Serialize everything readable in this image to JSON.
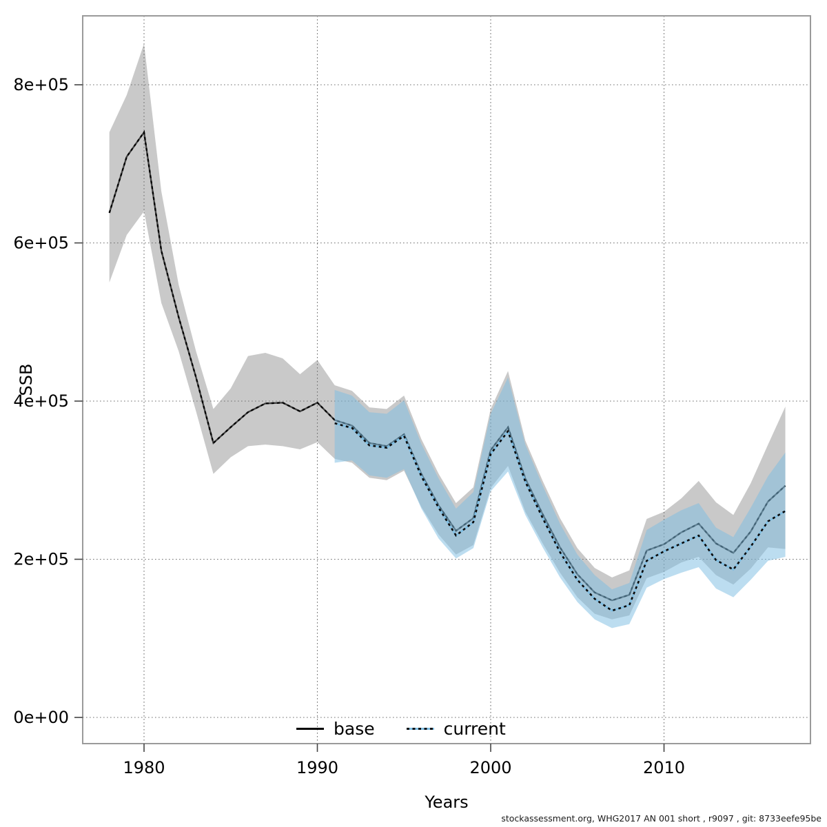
{
  "figure": {
    "footer": "stockassessment.org, WHG2017 AN 001 short , r9097 , git: 8733eefe95be"
  },
  "chart_data": {
    "type": "line",
    "title": "",
    "xlabel": "Years",
    "ylabel": "SSB",
    "grid": "dotted",
    "xlim": [
      1976.5,
      2018.5
    ],
    "ylim": [
      -33000,
      887000
    ],
    "x_ticks": [
      1980,
      1990,
      2000,
      2010
    ],
    "y_ticks": [
      {
        "value": 0,
        "label": "0e+00"
      },
      {
        "value": 200000,
        "label": "2e+05"
      },
      {
        "value": 400000,
        "label": "4e+05"
      },
      {
        "value": 600000,
        "label": "6e+05"
      },
      {
        "value": 800000,
        "label": "8e+05"
      }
    ],
    "legend": {
      "position": "bottom-center",
      "entries": [
        {
          "label": "base",
          "line_style": "solid",
          "line_color": "#000000"
        },
        {
          "label": "current",
          "line_style": "dotted",
          "line_color": "#101418",
          "line_underlay_color": "#7fbee3"
        }
      ]
    },
    "colors": {
      "base_band": "#c9c9c9",
      "current_band": "#7fbee3",
      "current_band_opacity": 0.52,
      "base_line": "#000000",
      "current_line_dots": "#0a0a0a",
      "current_line_underlay": "#7fbee3",
      "plot_border": "#9a9a9a",
      "grid": "#6e6e6e",
      "tick": "#444444"
    },
    "series": [
      {
        "name": "base",
        "band": "gray confidence interval",
        "points": [
          {
            "year": 1978,
            "value": 638000,
            "lo": 550000,
            "hi": 740000
          },
          {
            "year": 1979,
            "value": 709000,
            "lo": 610000,
            "hi": 787000
          },
          {
            "year": 1980,
            "value": 740000,
            "lo": 640000,
            "hi": 852000
          },
          {
            "year": 1981,
            "value": 590000,
            "lo": 524000,
            "hi": 665000
          },
          {
            "year": 1982,
            "value": 506000,
            "lo": 463000,
            "hi": 547000
          },
          {
            "year": 1983,
            "value": 430000,
            "lo": 387000,
            "hi": 463000
          },
          {
            "year": 1984,
            "value": 347000,
            "lo": 308000,
            "hi": 390000
          },
          {
            "year": 1985,
            "value": 367000,
            "lo": 329000,
            "hi": 416000
          },
          {
            "year": 1986,
            "value": 386000,
            "lo": 343000,
            "hi": 457000
          },
          {
            "year": 1987,
            "value": 397000,
            "lo": 345000,
            "hi": 461000
          },
          {
            "year": 1988,
            "value": 398000,
            "lo": 343000,
            "hi": 454000
          },
          {
            "year": 1989,
            "value": 387000,
            "lo": 339000,
            "hi": 434000
          },
          {
            "year": 1990,
            "value": 398000,
            "lo": 348000,
            "hi": 452000
          },
          {
            "year": 1991,
            "value": 376000,
            "lo": 327000,
            "hi": 420000
          },
          {
            "year": 1992,
            "value": 369000,
            "lo": 322000,
            "hi": 413000
          },
          {
            "year": 1993,
            "value": 347000,
            "lo": 303000,
            "hi": 392000
          },
          {
            "year": 1994,
            "value": 343000,
            "lo": 300000,
            "hi": 390000
          },
          {
            "year": 1995,
            "value": 358000,
            "lo": 312000,
            "hi": 407000
          },
          {
            "year": 1996,
            "value": 308000,
            "lo": 266000,
            "hi": 352000
          },
          {
            "year": 1997,
            "value": 268000,
            "lo": 231000,
            "hi": 308000
          },
          {
            "year": 1998,
            "value": 236000,
            "lo": 206000,
            "hi": 271000
          },
          {
            "year": 1999,
            "value": 252000,
            "lo": 218000,
            "hi": 291000
          },
          {
            "year": 2000,
            "value": 338000,
            "lo": 290000,
            "hi": 390000
          },
          {
            "year": 2001,
            "value": 367000,
            "lo": 318000,
            "hi": 438000
          },
          {
            "year": 2002,
            "value": 302000,
            "lo": 260000,
            "hi": 350000
          },
          {
            "year": 2003,
            "value": 257000,
            "lo": 220000,
            "hi": 299000
          },
          {
            "year": 2004,
            "value": 215000,
            "lo": 183000,
            "hi": 252000
          },
          {
            "year": 2005,
            "value": 181000,
            "lo": 152000,
            "hi": 214000
          },
          {
            "year": 2006,
            "value": 158000,
            "lo": 131000,
            "hi": 189000
          },
          {
            "year": 2007,
            "value": 148000,
            "lo": 124000,
            "hi": 177000
          },
          {
            "year": 2008,
            "value": 155000,
            "lo": 129000,
            "hi": 186000
          },
          {
            "year": 2009,
            "value": 211000,
            "lo": 176000,
            "hi": 251000
          },
          {
            "year": 2010,
            "value": 219000,
            "lo": 184000,
            "hi": 260000
          },
          {
            "year": 2011,
            "value": 234000,
            "lo": 196000,
            "hi": 277000
          },
          {
            "year": 2012,
            "value": 245000,
            "lo": 203000,
            "hi": 299000
          },
          {
            "year": 2013,
            "value": 220000,
            "lo": 180000,
            "hi": 272000
          },
          {
            "year": 2014,
            "value": 208000,
            "lo": 168000,
            "hi": 256000
          },
          {
            "year": 2015,
            "value": 235000,
            "lo": 188000,
            "hi": 296000
          },
          {
            "year": 2016,
            "value": 273000,
            "lo": 215000,
            "hi": 345000
          },
          {
            "year": 2017,
            "value": 293000,
            "lo": 213000,
            "hi": 393000
          }
        ]
      },
      {
        "name": "current",
        "band": "blue confidence interval",
        "points": [
          {
            "year": 1991,
            "value": 372000,
            "lo": 322000,
            "hi": 414000
          },
          {
            "year": 1992,
            "value": 366000,
            "lo": 325000,
            "hi": 407000
          },
          {
            "year": 1993,
            "value": 344000,
            "lo": 306000,
            "hi": 386000
          },
          {
            "year": 1994,
            "value": 341000,
            "lo": 303000,
            "hi": 384000
          },
          {
            "year": 1995,
            "value": 356000,
            "lo": 314000,
            "hi": 401000
          },
          {
            "year": 1996,
            "value": 305000,
            "lo": 264000,
            "hi": 346000
          },
          {
            "year": 1997,
            "value": 265000,
            "lo": 226000,
            "hi": 302000
          },
          {
            "year": 1998,
            "value": 230000,
            "lo": 201000,
            "hi": 264000
          },
          {
            "year": 1999,
            "value": 247000,
            "lo": 214000,
            "hi": 285000
          },
          {
            "year": 2000,
            "value": 333000,
            "lo": 286000,
            "hi": 384000
          },
          {
            "year": 2001,
            "value": 362000,
            "lo": 311000,
            "hi": 430000
          },
          {
            "year": 2002,
            "value": 298000,
            "lo": 256000,
            "hi": 345000
          },
          {
            "year": 2003,
            "value": 252000,
            "lo": 215000,
            "hi": 293000
          },
          {
            "year": 2004,
            "value": 209000,
            "lo": 177000,
            "hi": 245000
          },
          {
            "year": 2005,
            "value": 174000,
            "lo": 146000,
            "hi": 206000
          },
          {
            "year": 2006,
            "value": 150000,
            "lo": 124000,
            "hi": 180000
          },
          {
            "year": 2007,
            "value": 135000,
            "lo": 113000,
            "hi": 162000
          },
          {
            "year": 2008,
            "value": 142000,
            "lo": 118000,
            "hi": 170000
          },
          {
            "year": 2009,
            "value": 198000,
            "lo": 164000,
            "hi": 237000
          },
          {
            "year": 2010,
            "value": 210000,
            "lo": 175000,
            "hi": 250000
          },
          {
            "year": 2011,
            "value": 220000,
            "lo": 183000,
            "hi": 262000
          },
          {
            "year": 2012,
            "value": 230000,
            "lo": 190000,
            "hi": 271000
          },
          {
            "year": 2013,
            "value": 199000,
            "lo": 163000,
            "hi": 240000
          },
          {
            "year": 2014,
            "value": 187000,
            "lo": 152000,
            "hi": 228000
          },
          {
            "year": 2015,
            "value": 216000,
            "lo": 174000,
            "hi": 265000
          },
          {
            "year": 2016,
            "value": 248000,
            "lo": 198000,
            "hi": 305000
          },
          {
            "year": 2017,
            "value": 261000,
            "lo": 203000,
            "hi": 335000
          }
        ]
      }
    ]
  }
}
